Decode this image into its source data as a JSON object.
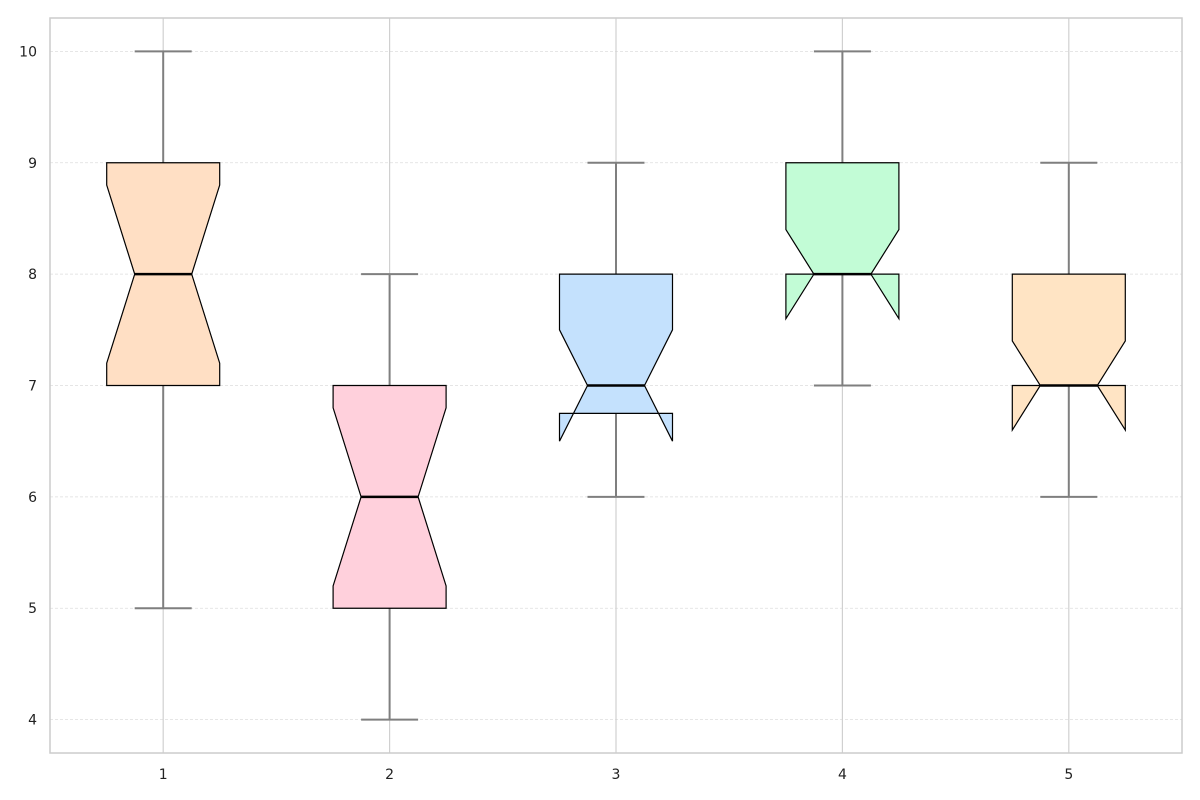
{
  "chart_data": {
    "type": "box",
    "notched": true,
    "title": "",
    "xlabel": "",
    "ylabel": "",
    "categories": [
      "1",
      "2",
      "3",
      "4",
      "5"
    ],
    "ylim": [
      3.7,
      10.3
    ],
    "yticks": [
      4,
      5,
      6,
      7,
      8,
      9,
      10
    ],
    "ytick_labels": [
      "4",
      "5",
      "6",
      "7",
      "8",
      "9",
      "10"
    ],
    "grid": {
      "vertical": true,
      "horizontal": true,
      "horizontal_style": "dashed"
    },
    "boxes": [
      {
        "name": "1",
        "whisker_low": 5,
        "q1": 7,
        "median": 8,
        "q3": 9,
        "whisker_high": 10,
        "notch_low": 7.2,
        "notch_high": 8.8,
        "color": "#ffdfc4"
      },
      {
        "name": "2",
        "whisker_low": 4,
        "q1": 5,
        "median": 6,
        "q3": 7,
        "whisker_high": 8,
        "notch_low": 5.2,
        "notch_high": 6.8,
        "color": "#ffd0dc"
      },
      {
        "name": "3",
        "whisker_low": 6,
        "q1": 6.75,
        "median": 7,
        "q3": 8,
        "whisker_high": 9,
        "notch_low": 6.5,
        "notch_high": 7.5,
        "color": "#c4e1fd"
      },
      {
        "name": "4",
        "whisker_low": 7,
        "q1": 8,
        "median": 8,
        "q3": 9,
        "whisker_high": 10,
        "notch_low": 7.6,
        "notch_high": 8.4,
        "color": "#c2fcd6"
      },
      {
        "name": "5",
        "whisker_low": 6,
        "q1": 7,
        "median": 7,
        "q3": 8,
        "whisker_high": 9,
        "notch_low": 6.6,
        "notch_high": 7.4,
        "color": "#ffe4c4"
      }
    ],
    "colors": {
      "whisker": "#7f7f7f",
      "box_edge": "#000000",
      "median": "#000000",
      "grid": "#dddddd",
      "vgrid": "#d0d0d0",
      "frame": "#cccccc"
    }
  }
}
